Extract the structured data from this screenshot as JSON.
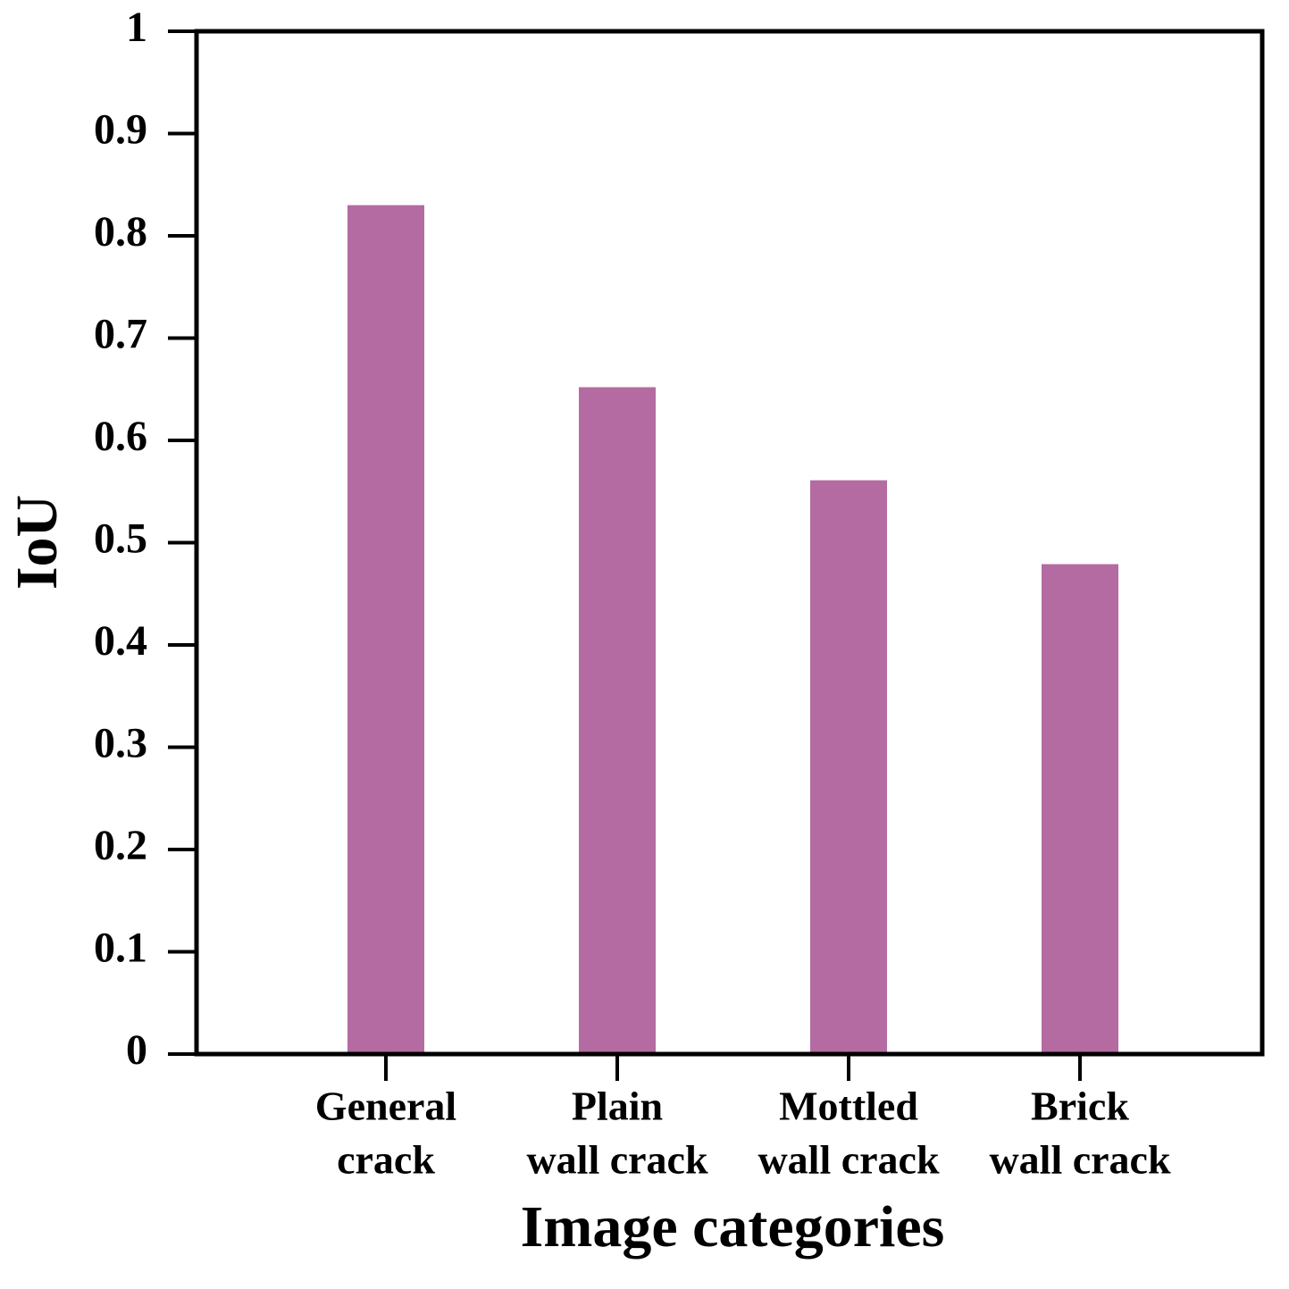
{
  "chart_data": {
    "type": "bar",
    "x_label": "Image categories",
    "y_label": "IoU",
    "categories": [
      [
        "General",
        "crack"
      ],
      [
        "Plain",
        "wall crack"
      ],
      [
        "Mottled",
        "wall crack"
      ],
      [
        "Brick",
        "wall crack"
      ]
    ],
    "values": [
      0.83,
      0.652,
      0.561,
      0.479
    ],
    "color": "#b46ba2",
    "ylim": [
      0,
      1
    ],
    "yticks": [
      0,
      0.1,
      0.2,
      0.3,
      0.4,
      0.5,
      0.6,
      0.7,
      0.8,
      0.9,
      1
    ],
    "grid": false
  }
}
